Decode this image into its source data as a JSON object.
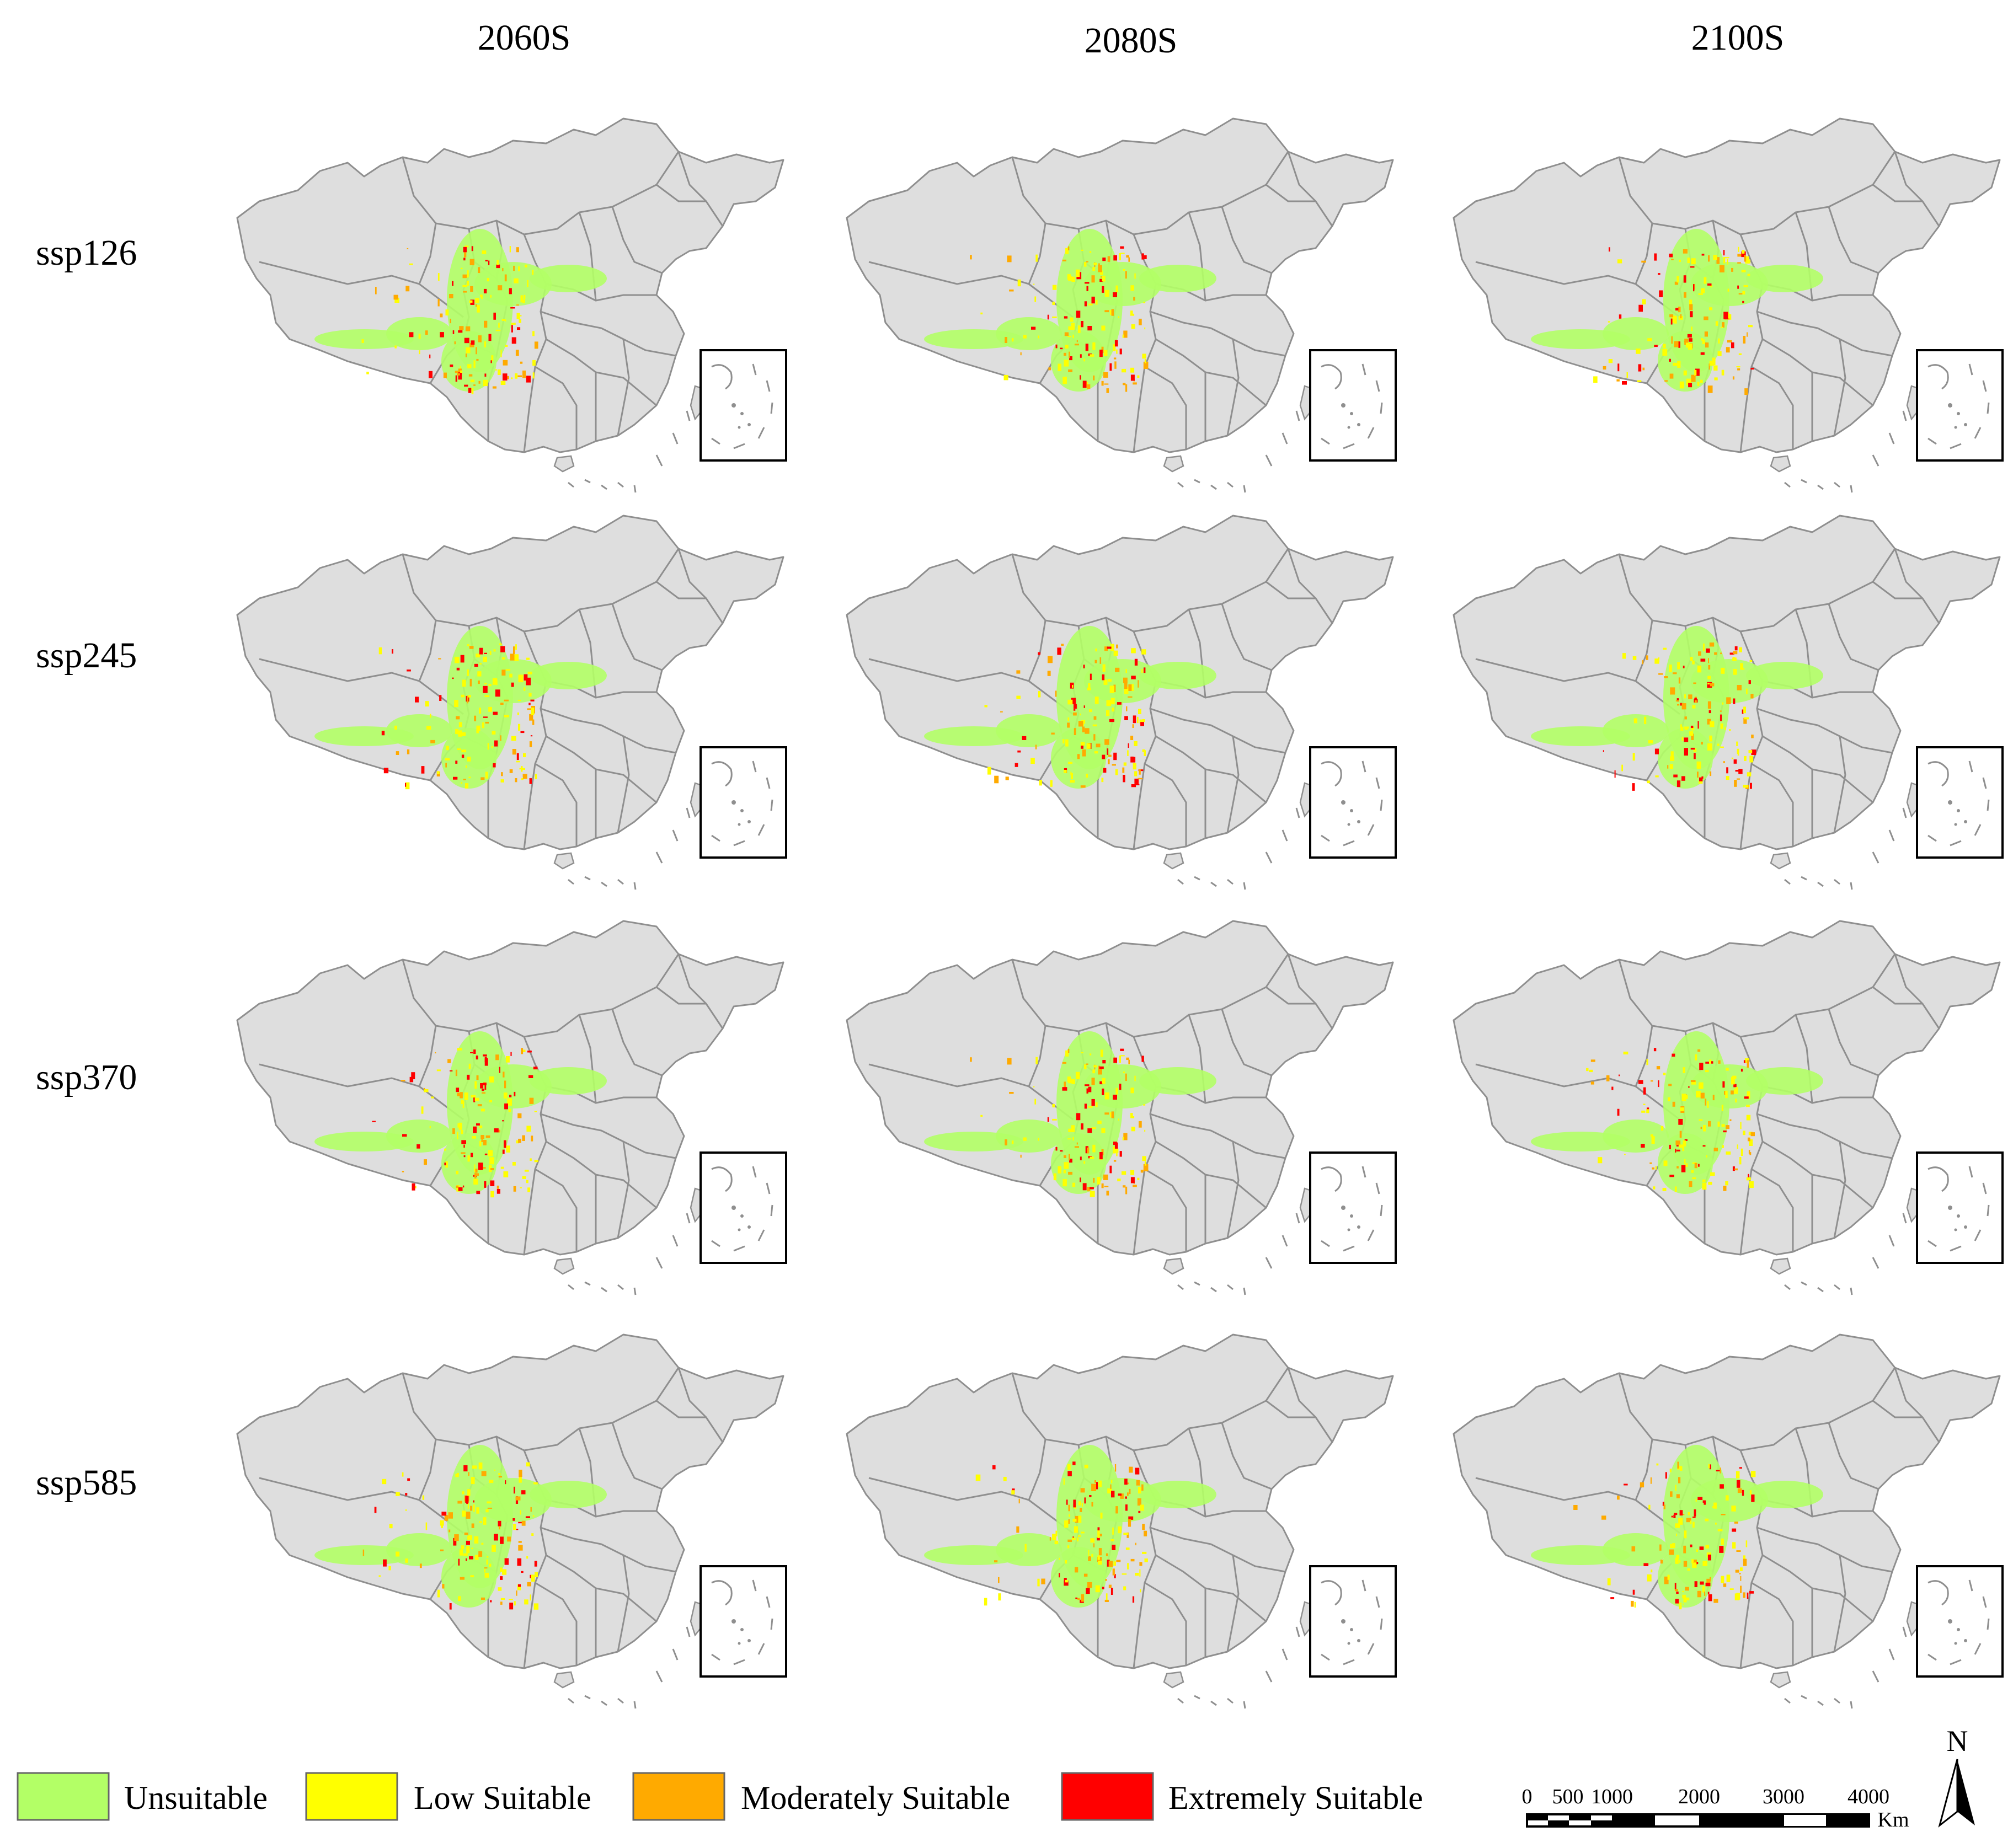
{
  "columns": [
    "2060S",
    "2080S",
    "2100S"
  ],
  "rows": [
    "ssp126",
    "ssp245",
    "ssp370",
    "ssp585"
  ],
  "legend": [
    {
      "label": "Unsuitable",
      "color": "#b3ff66"
    },
    {
      "label": "Low Suitable",
      "color": "#ffff00"
    },
    {
      "label": "Moderately Suitable",
      "color": "#ffaa00"
    },
    {
      "label": "Extremely Suitable",
      "color": "#ff0000"
    }
  ],
  "scale_bar": {
    "ticks": [
      "0",
      "500",
      "1000",
      "2000",
      "3000",
      "4000"
    ],
    "unit": "Km"
  },
  "north_arrow": {
    "label": "N"
  },
  "colors": {
    "land": "#dedede",
    "boundary": "#8f8f8f"
  }
}
